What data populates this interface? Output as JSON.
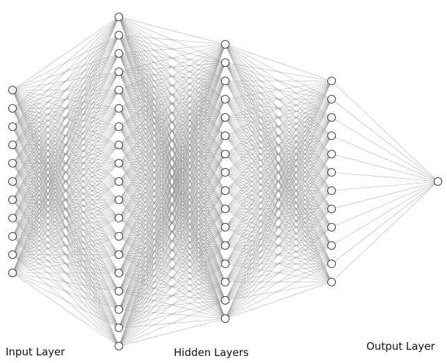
{
  "diagram": {
    "type": "fully-connected-neural-network",
    "layers": [
      {
        "role": "input",
        "neurons": 11
      },
      {
        "role": "hidden",
        "neurons": 19
      },
      {
        "role": "hidden",
        "neurons": 16
      },
      {
        "role": "hidden",
        "neurons": 12
      },
      {
        "role": "output",
        "neurons": 1
      }
    ],
    "labels": {
      "input": "Input Layer",
      "hidden": "Hidden Layers",
      "output": "Output Layer"
    },
    "colors": {
      "edge": "#8c8c8c",
      "node_fill": "#ffffff",
      "node_stroke": "#3a3a3a",
      "text": "#111111"
    }
  }
}
